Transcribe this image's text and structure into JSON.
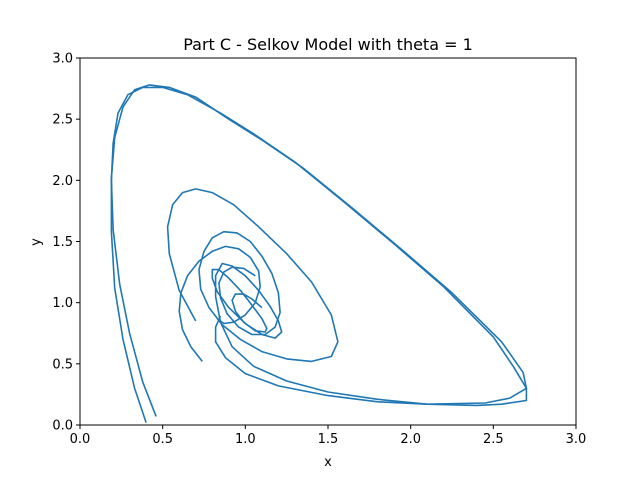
{
  "chart_data": {
    "type": "line",
    "title": "Part C - Selkov Model with theta =  1",
    "xlabel": "x",
    "ylabel": "y",
    "xlim": [
      0.0,
      3.0
    ],
    "ylim": [
      0.0,
      3.0
    ],
    "xticks": [
      "0.0",
      "0.5",
      "1.0",
      "1.5",
      "2.0",
      "2.5",
      "3.0"
    ],
    "yticks": [
      "0.0",
      "0.5",
      "1.0",
      "1.5",
      "2.0",
      "2.5",
      "3.0"
    ],
    "grid": false,
    "legend": "none",
    "color": "#1f77b4",
    "series": [
      {
        "x": [
          0.46,
          0.38,
          0.3,
          0.24,
          0.2,
          0.19,
          0.2,
          0.23,
          0.29,
          0.38,
          0.5,
          0.65,
          0.85,
          1.05,
          1.3,
          1.6,
          1.9,
          2.2,
          2.5,
          2.62,
          2.7,
          2.7,
          2.55,
          2.4,
          2.1,
          1.8,
          1.5,
          1.25,
          1.05,
          0.92,
          0.85,
          0.82,
          0.82,
          0.86,
          0.92,
          1.0,
          1.08,
          1.15,
          1.2,
          1.22,
          1.18,
          1.1,
          1.0,
          0.9,
          0.83,
          0.8,
          0.8,
          0.84,
          0.9,
          0.97,
          1.04,
          1.1,
          1.13,
          1.12,
          1.06,
          0.99,
          0.94,
          0.92,
          0.94,
          0.99,
          1.04,
          1.1
        ],
        "y": [
          0.07,
          0.35,
          0.75,
          1.15,
          1.6,
          2.0,
          2.3,
          2.55,
          2.7,
          2.76,
          2.76,
          2.7,
          2.55,
          2.38,
          2.15,
          1.82,
          1.48,
          1.13,
          0.72,
          0.48,
          0.3,
          0.2,
          0.17,
          0.16,
          0.17,
          0.21,
          0.27,
          0.36,
          0.48,
          0.64,
          0.84,
          1.05,
          1.22,
          1.32,
          1.3,
          1.22,
          1.1,
          0.97,
          0.85,
          0.76,
          0.71,
          0.74,
          0.83,
          0.96,
          1.09,
          1.2,
          1.27,
          1.27,
          1.2,
          1.1,
          0.98,
          0.87,
          0.79,
          0.76,
          0.77,
          0.84,
          0.93,
          1.02,
          1.07,
          1.07,
          1.03,
          0.96
        ]
      },
      {
        "x": [
          0.4,
          0.33,
          0.26,
          0.21,
          0.19,
          0.19,
          0.21,
          0.26,
          0.33,
          0.42,
          0.54,
          0.7,
          0.9,
          1.1,
          1.35,
          1.65,
          1.95,
          2.25,
          2.55,
          2.68,
          2.7,
          2.6,
          2.45,
          2.1,
          1.8,
          1.5,
          1.2,
          1.0,
          0.88,
          0.82,
          0.82,
          0.85
        ],
        "y": [
          0.02,
          0.3,
          0.7,
          1.12,
          1.58,
          2.02,
          2.35,
          2.6,
          2.74,
          2.78,
          2.76,
          2.68,
          2.5,
          2.33,
          2.1,
          1.77,
          1.43,
          1.08,
          0.68,
          0.43,
          0.3,
          0.22,
          0.18,
          0.17,
          0.19,
          0.24,
          0.32,
          0.42,
          0.55,
          0.68,
          0.8,
          0.89
        ]
      },
      {
        "x": [
          0.7,
          0.6,
          0.54,
          0.53,
          0.56,
          0.62,
          0.7,
          0.8,
          0.93,
          1.08,
          1.25,
          1.4,
          1.52,
          1.56,
          1.52,
          1.4,
          1.25,
          1.1,
          0.97,
          0.86,
          0.78,
          0.73,
          0.72,
          0.75,
          0.8,
          0.87,
          0.95,
          1.03,
          1.1,
          1.16,
          1.2,
          1.21,
          1.18,
          1.12,
          1.04,
          0.96,
          0.89,
          0.85,
          0.84,
          0.87,
          0.92,
          0.99,
          1.06
        ],
        "y": [
          0.85,
          1.1,
          1.4,
          1.62,
          1.8,
          1.9,
          1.93,
          1.9,
          1.8,
          1.62,
          1.4,
          1.17,
          0.9,
          0.68,
          0.56,
          0.52,
          0.54,
          0.6,
          0.7,
          0.82,
          0.96,
          1.11,
          1.27,
          1.42,
          1.53,
          1.58,
          1.57,
          1.5,
          1.38,
          1.24,
          1.08,
          0.92,
          0.8,
          0.74,
          0.74,
          0.8,
          0.91,
          1.04,
          1.16,
          1.25,
          1.29,
          1.28,
          1.22
        ]
      },
      {
        "x": [
          0.74,
          0.67,
          0.62,
          0.6,
          0.61,
          0.65,
          0.72,
          0.8,
          0.88,
          0.96,
          1.03,
          1.08,
          1.09,
          1.06,
          1.0,
          0.93,
          0.87,
          0.83
        ],
        "y": [
          0.52,
          0.64,
          0.78,
          0.93,
          1.08,
          1.22,
          1.34,
          1.42,
          1.46,
          1.44,
          1.37,
          1.26,
          1.13,
          1.0,
          0.9,
          0.84,
          0.83,
          0.87
        ]
      }
    ]
  }
}
